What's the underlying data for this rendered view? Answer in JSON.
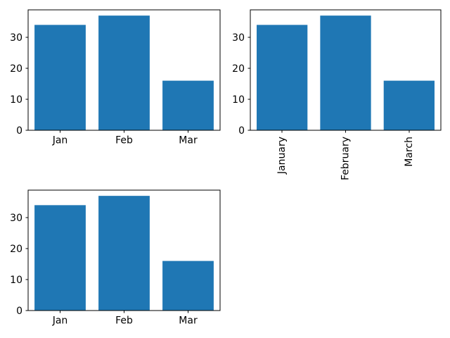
{
  "figure": {
    "background": "#ffffff",
    "bar_color": "#1f77b4",
    "axis_color": "#000000",
    "text_color": "#000000"
  },
  "chart_data": [
    {
      "type": "bar",
      "title": "",
      "xlabel": "",
      "ylabel": "",
      "categories": [
        "Jan",
        "Feb",
        "Mar"
      ],
      "values": [
        34,
        37,
        16
      ],
      "yticks": [
        0,
        10,
        20,
        30
      ],
      "ylim": [
        0,
        38.85
      ],
      "xtick_rotation": 0,
      "grid": false,
      "legend": false,
      "position": "top-left"
    },
    {
      "type": "bar",
      "title": "",
      "xlabel": "",
      "ylabel": "",
      "categories": [
        "January",
        "February",
        "March"
      ],
      "values": [
        34,
        37,
        16
      ],
      "yticks": [
        0,
        10,
        20,
        30
      ],
      "ylim": [
        0,
        38.85
      ],
      "xtick_rotation": 90,
      "grid": false,
      "legend": false,
      "position": "top-right"
    },
    {
      "type": "bar",
      "title": "",
      "xlabel": "",
      "ylabel": "",
      "categories": [
        "Jan",
        "Feb",
        "Mar"
      ],
      "values": [
        34,
        37,
        16
      ],
      "yticks": [
        0,
        10,
        20,
        30
      ],
      "ylim": [
        0,
        38.85
      ],
      "xtick_rotation": 0,
      "grid": false,
      "legend": false,
      "position": "bottom-left"
    }
  ]
}
